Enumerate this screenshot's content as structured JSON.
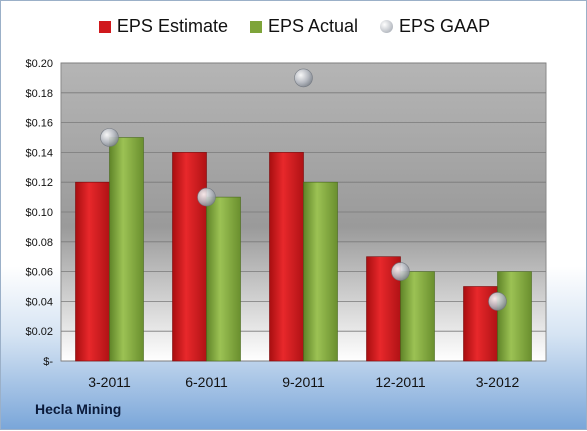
{
  "chart_data": {
    "type": "bar",
    "categories": [
      "3-2011",
      "6-2011",
      "9-2011",
      "12-2011",
      "3-2012"
    ],
    "series": [
      {
        "name": "EPS Estimate",
        "type": "bar",
        "color": "#d0181c",
        "values": [
          0.12,
          0.14,
          0.14,
          0.07,
          0.05
        ]
      },
      {
        "name": "EPS Actual",
        "type": "bar",
        "color": "#7ea43a",
        "values": [
          0.15,
          0.11,
          0.12,
          0.06,
          0.06
        ]
      },
      {
        "name": "EPS GAAP",
        "type": "scatter",
        "color": "#b8bcc4",
        "values": [
          0.15,
          0.11,
          0.19,
          0.06,
          0.04
        ]
      }
    ],
    "y_ticks": [
      "$-",
      "$0.02",
      "$0.04",
      "$0.06",
      "$0.08",
      "$0.10",
      "$0.12",
      "$0.14",
      "$0.16",
      "$0.18",
      "$0.20"
    ],
    "ylim": [
      0,
      0.2
    ],
    "grid": true,
    "legend_position": "top"
  },
  "company": "Hecla Mining"
}
